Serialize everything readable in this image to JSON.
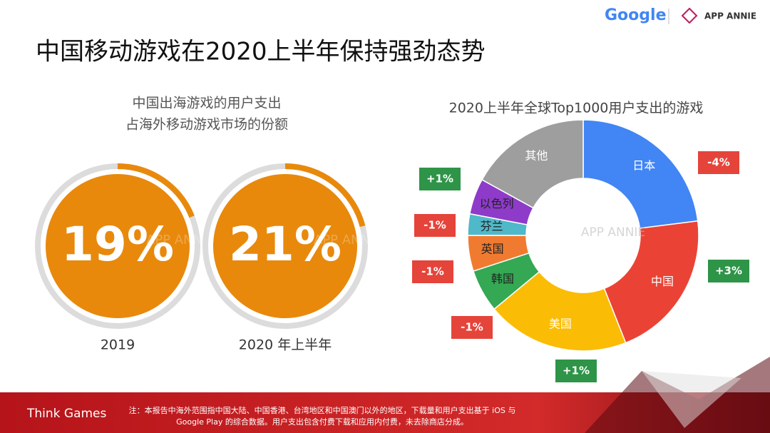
{
  "header": {
    "title": "中国移动游戏在2020上半年保持强劲态势",
    "logo_google": "Google",
    "logo_appannie": "APP ANNIE",
    "watermark": "APP ANNIE"
  },
  "chart_data": [
    {
      "type": "gauge",
      "title_lines": [
        "中国出海游戏的用户支出",
        "占海外移动游戏市场的份额"
      ],
      "categories": [
        "2019",
        "2020 年上半年"
      ],
      "values": [
        19,
        21
      ],
      "value_labels": [
        "19%",
        "21%"
      ],
      "color": "#e8890c",
      "track_color": "#dcdcdc"
    },
    {
      "type": "donut",
      "title": "2020上半年全球Top1000用户支出的游戏",
      "categories": [
        "日本",
        "中国",
        "美国",
        "韩国",
        "英国",
        "芬兰",
        "以色列",
        "其他"
      ],
      "values": [
        23,
        21,
        20,
        6,
        5,
        3,
        5,
        17
      ],
      "colors": [
        "#4285f4",
        "#ea4335",
        "#fbbc05",
        "#34a853",
        "#f07b30",
        "#4fb8c9",
        "#8e3bc9",
        "#9e9e9e"
      ],
      "changes": [
        -4,
        3,
        1,
        -1,
        -1,
        -1,
        1,
        null
      ],
      "change_labels": [
        "-4%",
        "+3%",
        "+1%",
        "-1%",
        "-1%",
        "-1%",
        "+1%",
        null
      ],
      "positive_color": "#2e9447",
      "negative_color": "#e5443a"
    }
  ],
  "footer": {
    "brand": "Think Games",
    "note_lines": [
      "注：本报告中海外范围指中国大陆、中国香港、台湾地区和中国澳门以外的地区，下载量和用户支出基于 iOS 与",
      "Google Play 的综合数据。用户支出包含付费下载和应用内付费，未去除商店分成。"
    ]
  }
}
